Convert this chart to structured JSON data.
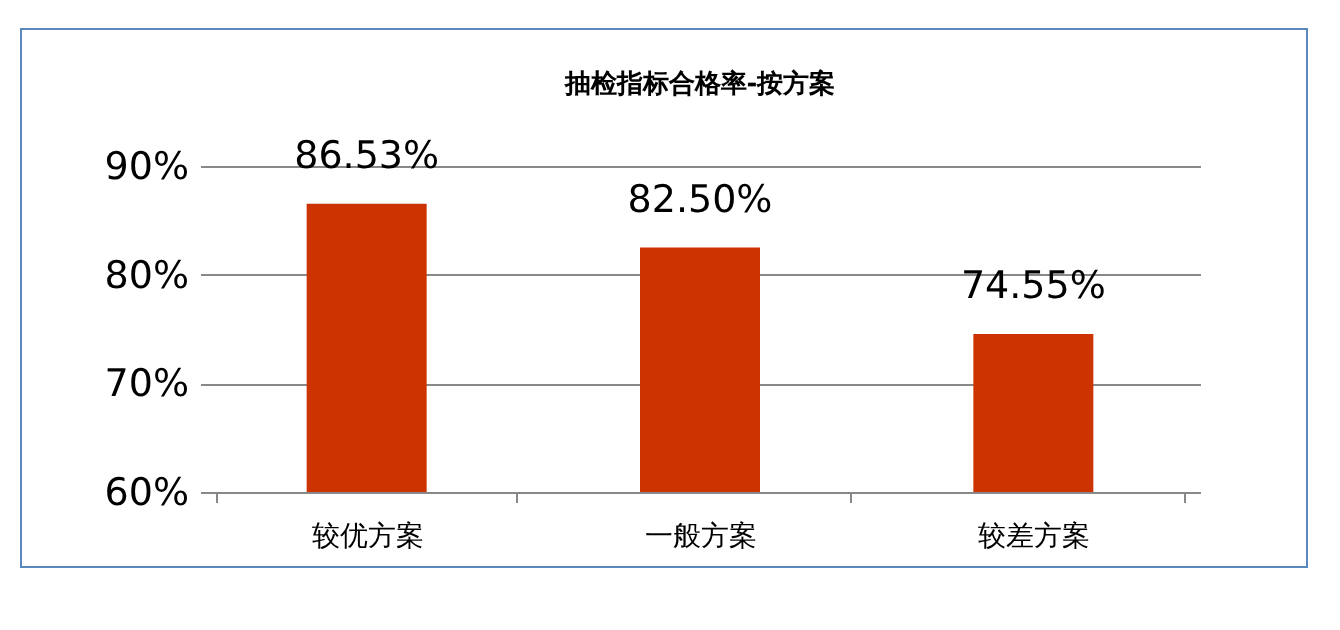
{
  "chart_data": {
    "type": "bar",
    "title": "抽检指标合格率-按方案",
    "categories": [
      "较优方案",
      "一般方案",
      "较差方案"
    ],
    "values": [
      86.53,
      82.5,
      74.55
    ],
    "value_labels": [
      "86.53%",
      "82.50%",
      "74.55%"
    ],
    "color": "#cc3300",
    "ylim": [
      60,
      90
    ],
    "yticks": [
      {
        "value": 60,
        "label": "60%"
      },
      {
        "value": 70,
        "label": "70%"
      },
      {
        "value": 80,
        "label": "80%"
      },
      {
        "value": 90,
        "label": "90%"
      }
    ],
    "grid": "y"
  }
}
